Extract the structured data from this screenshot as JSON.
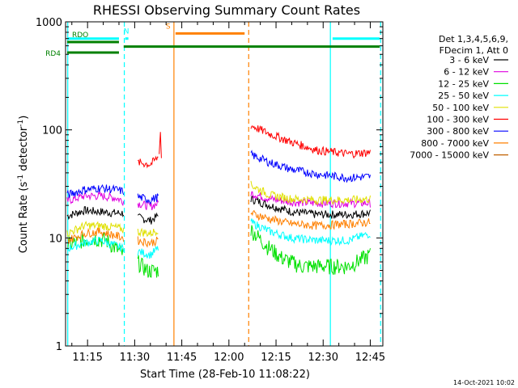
{
  "chart_data": {
    "type": "line",
    "title": "RHESSI Observing Summary Count Rates",
    "xlabel": "Start Time (28-Feb-10 11:08:22)",
    "ylabel_main": "Count Rate (s",
    "ylabel_sup1": "-1",
    "ylabel_mid": " detector",
    "ylabel_sup2": "-1",
    "ylabel_end": ")",
    "y_scale": "log",
    "ylim": [
      1,
      1000
    ],
    "xlim_min": [
      668,
      769
    ],
    "x_ticks": [
      {
        "v": 675,
        "label": "11:15"
      },
      {
        "v": 690,
        "label": "11:30"
      },
      {
        "v": 705,
        "label": "11:45"
      },
      {
        "v": 720,
        "label": "12:00"
      },
      {
        "v": 735,
        "label": "12:15"
      },
      {
        "v": 750,
        "label": "12:30"
      },
      {
        "v": 765,
        "label": "12:45"
      }
    ],
    "y_ticks": [
      {
        "v": 1,
        "label": "1"
      },
      {
        "v": 10,
        "label": "10"
      },
      {
        "v": 100,
        "label": "100"
      },
      {
        "v": 1000,
        "label": "1000"
      }
    ],
    "legend_header": [
      "Det 1,3,4,5,6,9,",
      "FDecim 1, Att 0"
    ],
    "series": [
      {
        "name": "3 - 6 keV",
        "color": "#000000",
        "pts": [
          [
            668.5,
            16
          ],
          [
            674,
            18
          ],
          [
            679,
            17.5
          ],
          [
            684,
            17
          ],
          [
            686.5,
            17
          ]
        ],
        "pts2": [
          [
            691,
            15.5
          ],
          [
            695,
            14.5
          ],
          [
            697.5,
            16
          ]
        ],
        "pts3": [
          [
            727,
            23
          ],
          [
            733,
            20
          ],
          [
            740,
            17.5
          ],
          [
            748,
            16.5
          ],
          [
            758,
            16.5
          ],
          [
            765,
            17
          ]
        ]
      },
      {
        "name": "6 - 12 keV",
        "color": "#e000e0",
        "pts": [
          [
            668.5,
            22
          ],
          [
            674,
            24.5
          ],
          [
            679,
            24.5
          ],
          [
            684,
            23.5
          ],
          [
            686.5,
            22
          ]
        ],
        "pts2": [
          [
            691,
            21
          ],
          [
            695,
            19.5
          ],
          [
            697.5,
            21
          ]
        ],
        "pts3": [
          [
            727,
            26
          ],
          [
            733,
            23
          ],
          [
            740,
            21.5
          ],
          [
            748,
            21
          ],
          [
            758,
            21
          ],
          [
            765,
            21
          ]
        ]
      },
      {
        "name": "12 - 25 keV",
        "color": "#00e000",
        "pts": [
          [
            668.5,
            8.5
          ],
          [
            673,
            9.5
          ],
          [
            677,
            10
          ],
          [
            681,
            9.5
          ],
          [
            684,
            8
          ],
          [
            686.5,
            7
          ]
        ],
        "pts2": [
          [
            691,
            6
          ],
          [
            694,
            5
          ],
          [
            697.5,
            5
          ]
        ],
        "pts3": [
          [
            727,
            12
          ],
          [
            732,
            8.5
          ],
          [
            737,
            6.5
          ],
          [
            743,
            5.5
          ],
          [
            750,
            5.5
          ],
          [
            758,
            5.5
          ],
          [
            765,
            7
          ]
        ]
      },
      {
        "name": "25 - 50 keV",
        "color": "#00ffff",
        "pts": [
          [
            668.5,
            8
          ],
          [
            674,
            9
          ],
          [
            679,
            9.5
          ],
          [
            684,
            8.5
          ],
          [
            686.5,
            8
          ]
        ],
        "pts2": [
          [
            691,
            7.5
          ],
          [
            695,
            7
          ],
          [
            697.5,
            8
          ]
        ],
        "pts3": [
          [
            727,
            14
          ],
          [
            733,
            11.5
          ],
          [
            740,
            10
          ],
          [
            748,
            9.5
          ],
          [
            758,
            9.5
          ],
          [
            765,
            11
          ]
        ]
      },
      {
        "name": "50 - 100 keV",
        "color": "#e0e000",
        "pts": [
          [
            668.5,
            11
          ],
          [
            674,
            13
          ],
          [
            679,
            13
          ],
          [
            684,
            12.5
          ],
          [
            686.5,
            12
          ]
        ],
        "pts2": [
          [
            691,
            11.5
          ],
          [
            695,
            11
          ],
          [
            697.5,
            12
          ]
        ],
        "pts3": [
          [
            727,
            31
          ],
          [
            733,
            25
          ],
          [
            740,
            23
          ],
          [
            748,
            22.5
          ],
          [
            758,
            22.5
          ],
          [
            765,
            23
          ]
        ]
      },
      {
        "name": "100 - 300 keV",
        "color": "#ff0000",
        "pts3": [
          [
            727,
            110
          ],
          [
            733,
            92
          ],
          [
            740,
            77
          ],
          [
            748,
            65
          ],
          [
            758,
            60
          ],
          [
            765,
            62
          ]
        ],
        "pts2": [
          [
            691,
            50
          ],
          [
            695,
            48
          ],
          [
            697.5,
            56
          ]
        ],
        "spike": [
          [
            697.8,
            60
          ],
          [
            698.2,
            95
          ],
          [
            698.5,
            55
          ]
        ]
      },
      {
        "name": "300 - 800 keV",
        "color": "#0000ff",
        "pts": [
          [
            668.5,
            25
          ],
          [
            674,
            28
          ],
          [
            679,
            29
          ],
          [
            684,
            28
          ],
          [
            686.5,
            27
          ]
        ],
        "pts2": [
          [
            691,
            24
          ],
          [
            695,
            22.5
          ],
          [
            697.5,
            24
          ]
        ],
        "pts3": [
          [
            727,
            59
          ],
          [
            733,
            50
          ],
          [
            740,
            43
          ],
          [
            748,
            39
          ],
          [
            758,
            36
          ],
          [
            765,
            37
          ]
        ]
      },
      {
        "name": "800 - 7000 keV",
        "color": "#ff8000",
        "pts": [
          [
            668.5,
            9.5
          ],
          [
            674,
            11
          ],
          [
            679,
            11.5
          ],
          [
            684,
            10.5
          ],
          [
            686.5,
            10
          ]
        ],
        "pts2": [
          [
            691,
            9.5
          ],
          [
            695,
            9
          ],
          [
            697.5,
            9.5
          ]
        ],
        "pts3": [
          [
            727,
            17
          ],
          [
            733,
            15
          ],
          [
            740,
            13.5
          ],
          [
            748,
            13
          ],
          [
            758,
            13.5
          ],
          [
            765,
            14
          ]
        ]
      },
      {
        "name": "7000 - 15000 keV",
        "color": "#c06000"
      }
    ],
    "attenuator_bars": [
      {
        "label": "",
        "color": "#00ffff",
        "x0": 668.5,
        "x1": 685,
        "y": 700
      },
      {
        "label": "N",
        "color": "#00ffff",
        "x0": 687,
        "x1": 688,
        "y": 700
      },
      {
        "label": "S",
        "color": "#ff8000",
        "x0": 703,
        "x1": 725,
        "y": 780
      },
      {
        "label": "",
        "color": "#00ffff",
        "x0": 753,
        "x1": 768,
        "y": 700
      },
      {
        "label": "RDO",
        "color": "#008000",
        "x0": 668.5,
        "x1": 685,
        "y": 650
      },
      {
        "label": "RD4",
        "color": "#008000",
        "x0": 668.5,
        "x1": 685,
        "y": 520
      },
      {
        "label": "",
        "color": "#008000",
        "x0": 686.5,
        "x1": 768,
        "y": 590
      }
    ],
    "vlines": [
      {
        "x": 668.7,
        "color": "#00ffff",
        "dash": false
      },
      {
        "x": 686.7,
        "color": "#00ffff",
        "dash": true
      },
      {
        "x": 702.5,
        "color": "#ff8000",
        "dash": false
      },
      {
        "x": 726.3,
        "color": "#ff8000",
        "dash": true
      },
      {
        "x": 752.3,
        "color": "#00ffff",
        "dash": false
      },
      {
        "x": 768.3,
        "color": "#00ffff",
        "dash": true
      }
    ],
    "footer_date": "14-Oct-2021 10:02"
  }
}
